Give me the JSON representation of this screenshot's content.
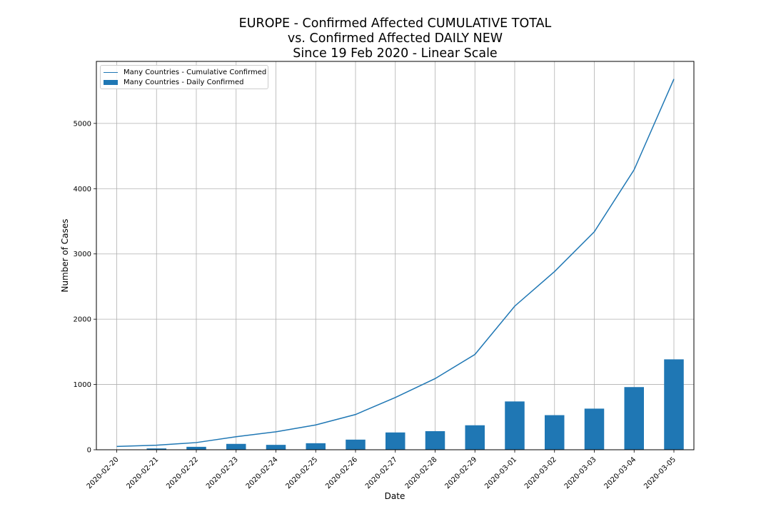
{
  "title": {
    "line1": "EUROPE - Confirmed Affected CUMULATIVE TOTAL",
    "line2": "vs. Confirmed Affected DAILY NEW",
    "line3": "Since 19 Feb 2020 - Linear Scale"
  },
  "legend": {
    "line_label": "Many Countries - Cumulative Confirmed",
    "bar_label": "Many Countries - Daily Confirmed",
    "placement": "upper-left"
  },
  "colors": {
    "series": "#1f77b4",
    "grid": "#b0b0b0"
  },
  "chart_data": {
    "type": "bar",
    "xlabel": "Date",
    "ylabel": "Number of Cases",
    "ylim": [
      0,
      5950
    ],
    "yticks": [
      0,
      1000,
      2000,
      3000,
      4000,
      5000
    ],
    "grid": true,
    "categories": [
      "2020-02-20",
      "2020-02-21",
      "2020-02-22",
      "2020-02-23",
      "2020-02-24",
      "2020-02-25",
      "2020-02-26",
      "2020-02-27",
      "2020-02-28",
      "2020-02-29",
      "2020-03-01",
      "2020-03-02",
      "2020-03-03",
      "2020-03-04",
      "2020-03-05"
    ],
    "series": [
      {
        "name": "Many Countries - Daily Confirmed",
        "type": "bar",
        "values": [
          5,
          20,
          45,
          90,
          75,
          100,
          155,
          265,
          285,
          375,
          740,
          530,
          630,
          960,
          1385
        ]
      },
      {
        "name": "Many Countries - Cumulative Confirmed",
        "type": "line",
        "values": [
          50,
          70,
          110,
          200,
          275,
          380,
          540,
          800,
          1090,
          1460,
          2200,
          2730,
          3340,
          4290,
          5680
        ]
      }
    ]
  }
}
